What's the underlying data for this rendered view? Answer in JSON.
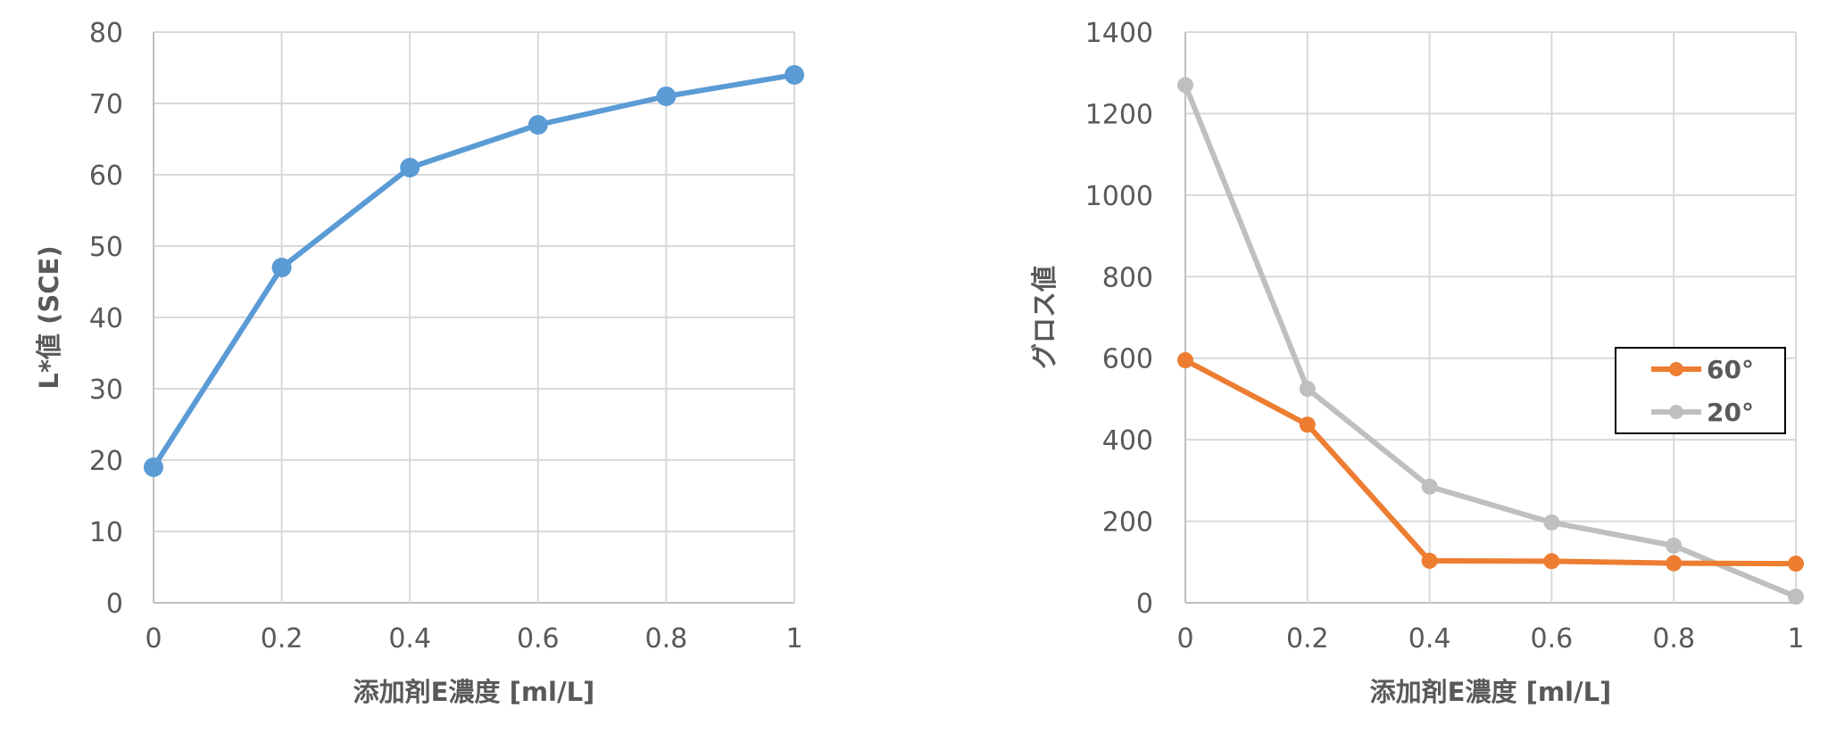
{
  "chart_data": [
    {
      "type": "line",
      "title": "",
      "xlabel": "添加剤E濃度 [ml/L]",
      "ylabel": "L*値 (SCE)",
      "xlim": [
        0,
        1
      ],
      "ylim": [
        0,
        80
      ],
      "xticks": [
        0,
        0.2,
        0.4,
        0.6,
        0.8,
        1
      ],
      "xtick_labels": [
        "0",
        "0.2",
        "0.4",
        "0.6",
        "0.8",
        "1"
      ],
      "yticks": [
        0,
        10,
        20,
        30,
        40,
        50,
        60,
        70,
        80
      ],
      "ytick_labels": [
        "0",
        "10",
        "20",
        "30",
        "40",
        "50",
        "60",
        "70",
        "80"
      ],
      "grid": true,
      "legend": "none",
      "series": [
        {
          "color": "#5b9bd5",
          "x": [
            0,
            0.2,
            0.4,
            0.6,
            0.8,
            1
          ],
          "y": [
            19,
            47,
            61,
            67,
            71,
            74
          ]
        }
      ]
    },
    {
      "type": "line",
      "title": "",
      "xlabel": "添加剤E濃度 [ml/L]",
      "ylabel": "グロス値",
      "xlim": [
        0,
        1
      ],
      "ylim": [
        0,
        1400
      ],
      "xticks": [
        0,
        0.2,
        0.4,
        0.6,
        0.8,
        1
      ],
      "xtick_labels": [
        "0",
        "0.2",
        "0.4",
        "0.6",
        "0.8",
        "1"
      ],
      "yticks": [
        0,
        200,
        400,
        600,
        800,
        1000,
        1200,
        1400
      ],
      "ytick_labels": [
        "0",
        "200",
        "400",
        "600",
        "800",
        "1000",
        "1200",
        "1400"
      ],
      "grid": true,
      "legend": "right",
      "series": [
        {
          "name": "60°",
          "color": "#ed7d31",
          "x": [
            0,
            0.2,
            0.4,
            0.6,
            0.8,
            1
          ],
          "y": [
            595,
            437,
            103,
            102,
            97,
            96
          ]
        },
        {
          "name": "20°",
          "color": "#bfbfbf",
          "x": [
            0,
            0.2,
            0.4,
            0.6,
            0.8,
            1
          ],
          "y": [
            1270,
            525,
            285,
            197,
            140,
            15
          ]
        }
      ]
    }
  ]
}
